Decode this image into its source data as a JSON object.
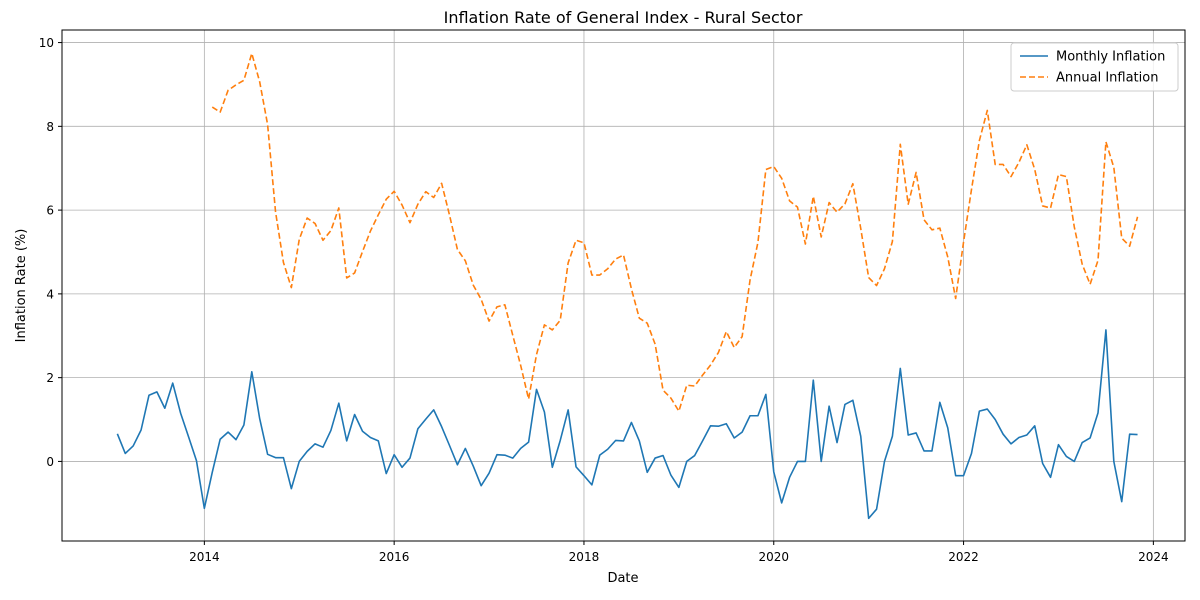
{
  "chart_data": {
    "type": "line",
    "title": "Inflation Rate of General Index - Rural Sector",
    "xlabel": "Date",
    "ylabel": "Inflation Rate (%)",
    "x_ticks": [
      "2014",
      "2016",
      "2018",
      "2020",
      "2022",
      "2024"
    ],
    "y_ticks": [
      "0",
      "2",
      "4",
      "6",
      "8",
      "10"
    ],
    "xlim": [
      "2012-07",
      "2024-05"
    ],
    "ylim": [
      -1.9,
      10.3
    ],
    "grid": true,
    "legend_position": "top-right",
    "colors": {
      "monthly": "#1f77b4",
      "annual": "#ff7f0e"
    },
    "series": [
      {
        "name": "Monthly Inflation",
        "style": "solid",
        "start": "2013-02",
        "values": [
          0.66,
          0.19,
          0.37,
          0.75,
          1.58,
          1.66,
          1.27,
          1.87,
          1.15,
          0.59,
          0.02,
          -1.12,
          -0.26,
          0.53,
          0.7,
          0.52,
          0.87,
          2.14,
          1.02,
          0.17,
          0.09,
          0.09,
          -0.65,
          0.0,
          0.24,
          0.42,
          0.34,
          0.74,
          1.39,
          0.49,
          1.12,
          0.72,
          0.57,
          0.49,
          -0.29,
          0.16,
          -0.14,
          0.08,
          0.78,
          1.01,
          1.23,
          0.83,
          0.38,
          -0.08,
          0.31,
          -0.11,
          -0.58,
          -0.28,
          0.16,
          0.15,
          0.08,
          0.31,
          0.46,
          1.72,
          1.18,
          -0.14,
          0.5,
          1.23,
          -0.13,
          -0.34,
          -0.56,
          0.15,
          0.29,
          0.5,
          0.49,
          0.93,
          0.49,
          -0.26,
          0.08,
          0.14,
          -0.33,
          -0.62,
          0.0,
          0.14,
          0.49,
          0.85,
          0.84,
          0.9,
          0.56,
          0.7,
          1.09,
          1.09,
          1.6,
          -0.25,
          -0.99,
          -0.38,
          0.0,
          0.0,
          1.94,
          0.0,
          1.32,
          0.45,
          1.36,
          1.46,
          0.6,
          -1.36,
          -1.14,
          0.0,
          0.6,
          2.22,
          0.63,
          0.68,
          0.25,
          0.25,
          1.41,
          0.8,
          -0.34,
          -0.34,
          0.19,
          1.2,
          1.25,
          1.0,
          0.65,
          0.42,
          0.57,
          0.63,
          0.85,
          -0.05,
          -0.38,
          0.4,
          0.12,
          0.0,
          0.45,
          0.56,
          1.16,
          3.14,
          0.0,
          -0.96,
          0.65,
          0.64
        ]
      },
      {
        "name": "Annual Inflation",
        "style": "dashed",
        "start": "2014-02",
        "values": [
          8.46,
          8.34,
          8.86,
          8.99,
          9.1,
          9.74,
          9.06,
          8.04,
          5.96,
          4.75,
          4.15,
          5.3,
          5.81,
          5.68,
          5.28,
          5.51,
          6.05,
          4.38,
          4.5,
          5.01,
          5.5,
          5.89,
          6.26,
          6.45,
          6.12,
          5.7,
          6.14,
          6.44,
          6.3,
          6.64,
          5.88,
          5.06,
          4.79,
          4.21,
          3.87,
          3.35,
          3.69,
          3.74,
          3.01,
          2.29,
          1.49,
          2.55,
          3.26,
          3.14,
          3.37,
          4.74,
          5.28,
          5.22,
          4.45,
          4.45,
          4.6,
          4.83,
          4.93,
          4.12,
          3.42,
          3.3,
          2.8,
          1.7,
          1.51,
          1.2,
          1.82,
          1.8,
          2.06,
          2.3,
          2.6,
          3.1,
          2.72,
          2.98,
          4.33,
          5.23,
          6.97,
          7.04,
          6.76,
          6.22,
          6.07,
          5.19,
          6.33,
          5.36,
          6.18,
          5.95,
          6.15,
          6.63,
          5.56,
          4.39,
          4.2,
          4.6,
          5.25,
          7.57,
          6.14,
          6.9,
          5.77,
          5.53,
          5.57,
          4.88,
          3.89,
          5.24,
          6.49,
          7.66,
          8.38,
          7.09,
          7.09,
          6.8,
          7.14,
          7.56,
          6.97,
          6.1,
          6.05,
          6.85,
          6.8,
          5.6,
          4.71,
          4.23,
          4.8,
          7.63,
          7.02,
          5.33,
          5.14,
          5.84
        ]
      }
    ]
  }
}
